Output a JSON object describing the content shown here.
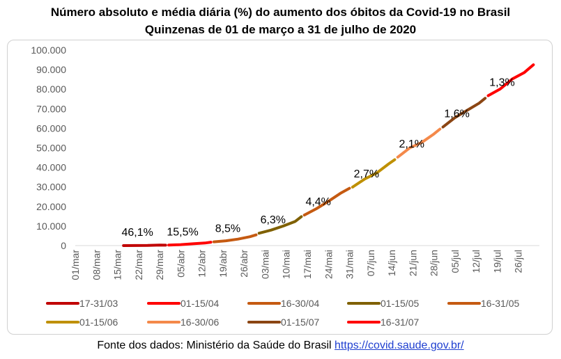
{
  "page": {
    "title_line1": "Número absoluto e média diária (%) do aumento dos óbitos da Covid-19 no Brasil",
    "title_line2": "Quinzenas de 01 de março a 31 de julho de 2020",
    "source_text": "Fonte dos dados: Ministério da Saúde do Brasil",
    "source_link": "https://covid.saude.gov.br/"
  },
  "chart_data": {
    "type": "line",
    "title": "Número absoluto e média diária (%) do aumento dos óbitos da Covid-19 no Brasil",
    "subtitle": "Quinzenas de 01 de março a 31 de julho de 2020",
    "xlabel": "",
    "ylabel": "",
    "ylim": [
      0,
      100000
    ],
    "yticks": [
      0,
      10000,
      20000,
      30000,
      40000,
      50000,
      60000,
      70000,
      80000,
      90000,
      100000
    ],
    "ytick_labels": [
      "0",
      "10.000",
      "20.000",
      "30.000",
      "40.000",
      "50.000",
      "60.000",
      "70.000",
      "80.000",
      "90.000",
      "100.000"
    ],
    "xtick_labels": [
      "01/mar",
      "08/mar",
      "15/mar",
      "22/mar",
      "29/mar",
      "05/abr",
      "12/abr",
      "19/abr",
      "26/abr",
      "03/mai",
      "10/mai",
      "17/mai",
      "24/mai",
      "31/mai",
      "07/jun",
      "14/jun",
      "21/jun",
      "28/jun",
      "05/jul",
      "12/jul",
      "19/jul",
      "26/jul"
    ],
    "x_units": "day index from 01/mar (0 = 01/mar)",
    "grid": false,
    "legend_position": "bottom",
    "series": [
      {
        "name": "17-31/03",
        "color": "#c00000",
        "x": [
          16,
          20,
          24,
          28,
          30
        ],
        "y": [
          1,
          18,
          77,
          244,
          201
        ]
      },
      {
        "name": "01-15/04",
        "color": "#ff0000",
        "x": [
          31,
          35,
          39,
          43,
          45
        ],
        "y": [
          240,
          486,
          941,
          1328,
          1736
        ]
      },
      {
        "name": "16-30/04",
        "color": "#c55a11",
        "x": [
          46,
          50,
          54,
          58,
          60
        ],
        "y": [
          1924,
          2462,
          3313,
          4543,
          5466
        ]
      },
      {
        "name": "01-15/05",
        "color": "#7f6000",
        "x": [
          61,
          65,
          69,
          73,
          75
        ],
        "y": [
          6329,
          7921,
          10017,
          12400,
          14817
        ]
      },
      {
        "name": "16-31/05",
        "color": "#c55a11",
        "x": [
          76,
          80,
          84,
          88,
          91
        ],
        "y": [
          15633,
          18859,
          22666,
          26754,
          29314
        ]
      },
      {
        "name": "01-15/06",
        "color": "#bf9000",
        "x": [
          92,
          96,
          100,
          104,
          106
        ],
        "y": [
          29937,
          34021,
          37134,
          41828,
          43959
        ]
      },
      {
        "name": "16-30/06",
        "color": "#f4894a",
        "x": [
          107,
          111,
          115,
          119,
          121
        ],
        "y": [
          45241,
          49976,
          52771,
          57070,
          59594
        ]
      },
      {
        "name": "01-15/07",
        "color": "#8b4513",
        "x": [
          122,
          126,
          130,
          134,
          136
        ],
        "y": [
          60632,
          65487,
          69184,
          72833,
          75366
        ]
      },
      {
        "name": "16-31/07",
        "color": "#ff0000",
        "x": [
          137,
          141,
          145,
          149,
          152
        ],
        "y": [
          76688,
          80120,
          85238,
          88539,
          92475
        ]
      }
    ],
    "annotations": [
      {
        "text": "46,1%",
        "series": "17-31/03"
      },
      {
        "text": "15,5%",
        "series": "01-15/04"
      },
      {
        "text": "8,5%",
        "series": "16-30/04"
      },
      {
        "text": "6,3%",
        "series": "01-15/05"
      },
      {
        "text": "4,4%",
        "series": "16-31/05"
      },
      {
        "text": "2,7%",
        "series": "01-15/06"
      },
      {
        "text": "2,1%",
        "series": "16-30/06"
      },
      {
        "text": "1,6%",
        "series": "01-15/07"
      },
      {
        "text": "1,3%",
        "series": "16-31/07"
      }
    ]
  }
}
